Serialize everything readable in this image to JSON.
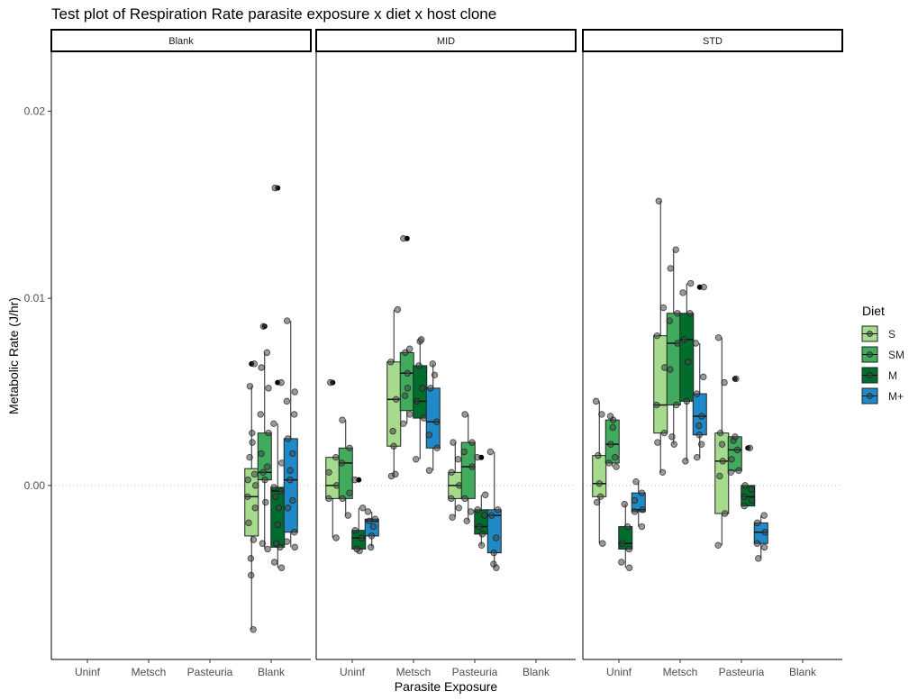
{
  "chart_data": {
    "type": "box",
    "title": "Test plot of Respiration Rate parasite exposure x diet x host clone",
    "xlabel": "Parasite Exposure",
    "ylabel": "Metabolic Rate (J/hr)",
    "ylim": [
      -0.0093,
      0.0232
    ],
    "yticks": [
      0.0,
      0.01,
      0.02
    ],
    "ytick_labels": [
      "0.00",
      "0.01",
      "0.02"
    ],
    "reference_line_y": 0.0,
    "facets": [
      "Blank",
      "MID",
      "STD"
    ],
    "categories": [
      "Uninf",
      "Metsch",
      "Pasteuria",
      "Blank"
    ],
    "legend": {
      "title": "Diet",
      "position": "right",
      "entries": [
        "S",
        "SM",
        "M",
        "M+"
      ],
      "colors": [
        "#a6db8e",
        "#41ab5d",
        "#006d2c",
        "#1f8ac7"
      ]
    },
    "boxes": [
      {
        "facet": "Blank",
        "category": "Blank",
        "diet": "S",
        "q1": -0.0027,
        "median": -0.0006,
        "q3": 0.0009,
        "whisker_low": -0.0077,
        "whisker_high": 0.0053,
        "outliers": [
          0.0065
        ],
        "points": [
          -0.0077,
          -0.0048,
          -0.0039,
          -0.0029,
          -0.002,
          -0.0012,
          -0.0006,
          0.0,
          0.0003,
          0.0006,
          0.0015,
          0.0023,
          0.0028,
          0.0053,
          0.0065
        ]
      },
      {
        "facet": "Blank",
        "category": "Blank",
        "diet": "SM",
        "q1": 0.0003,
        "median": 0.0007,
        "q3": 0.0028,
        "whisker_low": -0.0034,
        "whisker_high": 0.0071,
        "outliers": [
          0.0085
        ],
        "points": [
          -0.0034,
          -0.0031,
          -0.0009,
          0.0003,
          0.0007,
          0.001,
          0.0017,
          0.0028,
          0.0038,
          0.0052,
          0.0063,
          0.0071,
          0.0085
        ]
      },
      {
        "facet": "Blank",
        "category": "Blank",
        "diet": "M",
        "q1": -0.0033,
        "median": -0.0003,
        "q3": -0.0001,
        "whisker_low": -0.0044,
        "whisker_high": 0.0033,
        "outliers": [
          0.0055,
          0.0159
        ],
        "points": [
          -0.0044,
          -0.0041,
          -0.0033,
          -0.0031,
          -0.0021,
          -0.0012,
          -0.0006,
          -0.0003,
          -0.0001,
          0.0012,
          0.0033,
          0.0055,
          0.0159
        ]
      },
      {
        "facet": "Blank",
        "category": "Blank",
        "diet": "M+",
        "q1": -0.0025,
        "median": 0.0003,
        "q3": 0.0025,
        "whisker_low": -0.0033,
        "whisker_high": 0.0088,
        "outliers": [],
        "points": [
          -0.0033,
          -0.003,
          -0.0025,
          -0.0012,
          -0.0008,
          0.0003,
          0.0008,
          0.0017,
          0.0025,
          0.0038,
          0.0045,
          0.005,
          0.0088
        ]
      },
      {
        "facet": "MID",
        "category": "Uninf",
        "diet": "S",
        "q1": -0.0007,
        "median": 0.0,
        "q3": 0.0015,
        "whisker_low": -0.0028,
        "whisker_high": 0.0015,
        "outliers": [
          0.0055
        ],
        "points": [
          -0.0028,
          -0.0007,
          0.0,
          0.0007,
          0.0015,
          0.0055
        ]
      },
      {
        "facet": "MID",
        "category": "Uninf",
        "diet": "SM",
        "q1": -0.0007,
        "median": 0.0012,
        "q3": 0.002,
        "whisker_low": -0.0016,
        "whisker_high": 0.0035,
        "outliers": [],
        "points": [
          -0.0016,
          -0.0007,
          -0.0004,
          0.0012,
          0.002,
          0.0035
        ]
      },
      {
        "facet": "MID",
        "category": "Uninf",
        "diet": "M",
        "q1": -0.0034,
        "median": -0.0028,
        "q3": -0.0024,
        "whisker_low": -0.0035,
        "whisker_high": -0.0012,
        "outliers": [
          0.0003
        ],
        "points": [
          -0.0035,
          -0.0034,
          -0.0028,
          -0.0024,
          -0.0012,
          0.0003
        ]
      },
      {
        "facet": "MID",
        "category": "Uninf",
        "diet": "M+",
        "q1": -0.0027,
        "median": -0.0019,
        "q3": -0.0018,
        "whisker_low": -0.0033,
        "whisker_high": -0.0014,
        "outliers": [],
        "points": [
          -0.0033,
          -0.0027,
          -0.0022,
          -0.0019,
          -0.0018,
          -0.0014
        ]
      },
      {
        "facet": "MID",
        "category": "Metsch",
        "diet": "S",
        "q1": 0.0021,
        "median": 0.0046,
        "q3": 0.0066,
        "whisker_low": 0.0005,
        "whisker_high": 0.0094,
        "outliers": [],
        "points": [
          0.0005,
          0.0006,
          0.0021,
          0.0029,
          0.0046,
          0.0066,
          0.0094
        ]
      },
      {
        "facet": "MID",
        "category": "Metsch",
        "diet": "SM",
        "q1": 0.004,
        "median": 0.006,
        "q3": 0.0071,
        "whisker_low": 0.0033,
        "whisker_high": 0.0073,
        "outliers": [
          0.0132
        ],
        "points": [
          0.0033,
          0.0038,
          0.0048,
          0.0052,
          0.006,
          0.0071,
          0.0073,
          0.0132
        ]
      },
      {
        "facet": "MID",
        "category": "Metsch",
        "diet": "M",
        "q1": 0.0036,
        "median": 0.0045,
        "q3": 0.0064,
        "whisker_low": 0.0014,
        "whisker_high": 0.0077,
        "outliers": [],
        "points": [
          0.0014,
          0.0036,
          0.0045,
          0.0052,
          0.0064,
          0.0077,
          0.0078
        ]
      },
      {
        "facet": "MID",
        "category": "Metsch",
        "diet": "M+",
        "q1": 0.002,
        "median": 0.0034,
        "q3": 0.0052,
        "whisker_low": 0.0008,
        "whisker_high": 0.0065,
        "outliers": [],
        "points": [
          0.0008,
          0.002,
          0.0027,
          0.0034,
          0.0052,
          0.0059,
          0.0065
        ]
      },
      {
        "facet": "MID",
        "category": "Pasteuria",
        "diet": "S",
        "q1": -0.0007,
        "median": 0.0,
        "q3": 0.0007,
        "whisker_low": -0.0017,
        "whisker_high": 0.0023,
        "outliers": [],
        "points": [
          -0.0017,
          -0.0012,
          -0.0007,
          0.0,
          0.0007,
          0.0014,
          0.0023
        ]
      },
      {
        "facet": "MID",
        "category": "Pasteuria",
        "diet": "SM",
        "q1": -0.0007,
        "median": 0.001,
        "q3": 0.0023,
        "whisker_low": -0.0019,
        "whisker_high": 0.0038,
        "outliers": [],
        "points": [
          -0.0019,
          -0.0014,
          -0.0007,
          0.001,
          0.0018,
          0.0023,
          0.0038
        ]
      },
      {
        "facet": "MID",
        "category": "Pasteuria",
        "diet": "M",
        "q1": -0.0026,
        "median": -0.0022,
        "q3": -0.0013,
        "whisker_low": -0.0032,
        "whisker_high": -0.0005,
        "outliers": [
          0.0015
        ],
        "points": [
          -0.0032,
          -0.0026,
          -0.0022,
          -0.0016,
          -0.0013,
          -0.0005,
          0.0015
        ]
      },
      {
        "facet": "MID",
        "category": "Pasteuria",
        "diet": "M+",
        "q1": -0.0036,
        "median": -0.0016,
        "q3": -0.0013,
        "whisker_low": -0.0044,
        "whisker_high": 0.0018,
        "outliers": [],
        "points": [
          -0.0044,
          -0.0042,
          -0.0036,
          -0.0028,
          -0.0016,
          -0.0013,
          0.0018
        ]
      },
      {
        "facet": "STD",
        "category": "Uninf",
        "diet": "S",
        "q1": -0.0006,
        "median": 0.0001,
        "q3": 0.0016,
        "whisker_low": -0.0031,
        "whisker_high": 0.0045,
        "outliers": [],
        "points": [
          -0.0031,
          -0.0009,
          -0.0006,
          0.0001,
          0.0016,
          0.0038,
          0.0045
        ]
      },
      {
        "facet": "STD",
        "category": "Uninf",
        "diet": "SM",
        "q1": 0.0012,
        "median": 0.0022,
        "q3": 0.0035,
        "whisker_low": 0.001,
        "whisker_high": 0.0037,
        "outliers": [],
        "points": [
          0.001,
          0.0012,
          0.0015,
          0.0022,
          0.0031,
          0.0035,
          0.0037
        ]
      },
      {
        "facet": "STD",
        "category": "Uninf",
        "diet": "M",
        "q1": -0.0034,
        "median": -0.0031,
        "q3": -0.0022,
        "whisker_low": -0.0044,
        "whisker_high": -0.001,
        "outliers": [],
        "points": [
          -0.0044,
          -0.0041,
          -0.0034,
          -0.0031,
          -0.0022,
          -0.001
        ]
      },
      {
        "facet": "STD",
        "category": "Uninf",
        "diet": "M+",
        "q1": -0.0014,
        "median": -0.0013,
        "q3": -0.0004,
        "whisker_low": -0.0022,
        "whisker_high": 0.0002,
        "outliers": [],
        "points": [
          -0.0022,
          -0.0014,
          -0.0013,
          -0.0008,
          -0.0004,
          0.0002
        ]
      },
      {
        "facet": "STD",
        "category": "Metsch",
        "diet": "S",
        "q1": 0.0028,
        "median": 0.0043,
        "q3": 0.008,
        "whisker_low": 0.0007,
        "whisker_high": 0.0152,
        "outliers": [],
        "points": [
          0.0007,
          0.0023,
          0.0028,
          0.0043,
          0.0063,
          0.008,
          0.0095,
          0.0152
        ]
      },
      {
        "facet": "STD",
        "category": "Metsch",
        "diet": "SM",
        "q1": 0.0043,
        "median": 0.0076,
        "q3": 0.0092,
        "whisker_low": 0.0022,
        "whisker_high": 0.0126,
        "outliers": [],
        "points": [
          0.0022,
          0.0026,
          0.0043,
          0.0062,
          0.0076,
          0.0088,
          0.0092,
          0.0116,
          0.0126
        ]
      },
      {
        "facet": "STD",
        "category": "Metsch",
        "diet": "M",
        "q1": 0.0045,
        "median": 0.0078,
        "q3": 0.0092,
        "whisker_low": 0.0013,
        "whisker_high": 0.0108,
        "outliers": [],
        "points": [
          0.0013,
          0.0045,
          0.0066,
          0.0078,
          0.0092,
          0.0103,
          0.0108
        ]
      },
      {
        "facet": "STD",
        "category": "Metsch",
        "diet": "M+",
        "q1": 0.0027,
        "median": 0.0037,
        "q3": 0.0049,
        "whisker_low": 0.0015,
        "whisker_high": 0.0076,
        "outliers": [
          0.0106
        ],
        "points": [
          0.0015,
          0.0022,
          0.0027,
          0.0032,
          0.0037,
          0.0049,
          0.0058,
          0.0076,
          0.0106
        ]
      },
      {
        "facet": "STD",
        "category": "Pasteuria",
        "diet": "S",
        "q1": -0.0015,
        "median": 0.0013,
        "q3": 0.0028,
        "whisker_low": -0.0032,
        "whisker_high": 0.0079,
        "outliers": [],
        "points": [
          -0.0032,
          -0.0015,
          0.0005,
          0.0013,
          0.0022,
          0.0028,
          0.0055,
          0.0079
        ]
      },
      {
        "facet": "STD",
        "category": "Pasteuria",
        "diet": "SM",
        "q1": 0.0008,
        "median": 0.0019,
        "q3": 0.0026,
        "whisker_low": 0.0007,
        "whisker_high": 0.0026,
        "outliers": [
          0.0057
        ],
        "points": [
          0.0007,
          0.0008,
          0.0014,
          0.0019,
          0.0024,
          0.0026,
          0.0057
        ]
      },
      {
        "facet": "STD",
        "category": "Pasteuria",
        "diet": "M",
        "q1": -0.0011,
        "median": -0.0006,
        "q3": 0.0,
        "whisker_low": -0.0011,
        "whisker_high": 0.0,
        "outliers": [
          0.002
        ],
        "points": [
          -0.0011,
          -0.0008,
          -0.0006,
          -0.0002,
          0.0,
          0.002
        ]
      },
      {
        "facet": "STD",
        "category": "Pasteuria",
        "diet": "M+",
        "q1": -0.0031,
        "median": -0.0025,
        "q3": -0.002,
        "whisker_low": -0.0039,
        "whisker_high": -0.0016,
        "outliers": [],
        "points": [
          -0.0039,
          -0.0033,
          -0.0031,
          -0.0025,
          -0.002,
          -0.0016
        ]
      }
    ]
  }
}
